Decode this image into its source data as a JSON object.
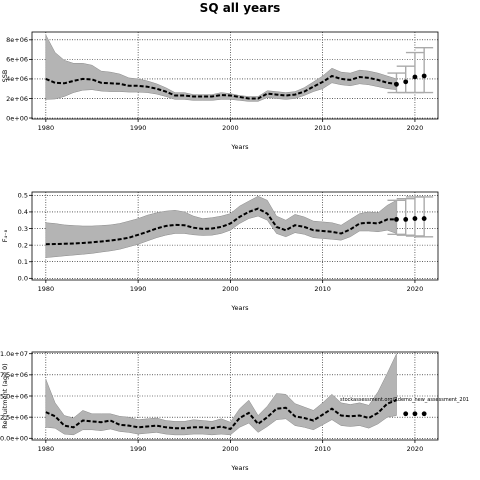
{
  "title": "SQ all years",
  "chart_data": [
    {
      "type": "line",
      "xlabel": "Years",
      "ylabel": "SSB",
      "xlim": [
        1978.5,
        2022.5
      ],
      "ylim": [
        -100000,
        8800000
      ],
      "xticks": [
        1980,
        1990,
        2000,
        2010,
        2020
      ],
      "yticks": [
        0,
        2000000,
        4000000,
        6000000,
        8000000
      ],
      "ytick_labels": [
        "0e+00",
        "2e+06",
        "4e+06",
        "6e+06",
        "8e+06"
      ],
      "grid": true,
      "annotation": "",
      "series": [
        {
          "x": [
            1980,
            1981,
            1982,
            1983,
            1984,
            1985,
            1986,
            1987,
            1988,
            1989,
            1990,
            1991,
            1992,
            1993,
            1994,
            1995,
            1996,
            1997,
            1998,
            1999,
            2000,
            2001,
            2002,
            2003,
            2004,
            2005,
            2006,
            2007,
            2008,
            2009,
            2010,
            2011,
            2012,
            2013,
            2014,
            2015,
            2016,
            2017,
            2018
          ],
          "values": [
            4000000,
            3600000,
            3550000,
            3800000,
            4000000,
            3950000,
            3600000,
            3550000,
            3500000,
            3300000,
            3300000,
            3200000,
            3000000,
            2700000,
            2300000,
            2300000,
            2200000,
            2200000,
            2200000,
            2350000,
            2300000,
            2150000,
            2000000,
            2000000,
            2500000,
            2400000,
            2300000,
            2400000,
            2700000,
            3200000,
            3700000,
            4300000,
            4000000,
            3900000,
            4200000,
            4100000,
            3900000,
            3600000,
            3500000
          ],
          "upper": [
            8500000,
            6700000,
            5900000,
            5600000,
            5600000,
            5400000,
            4800000,
            4700000,
            4500000,
            4100000,
            4000000,
            3800000,
            3500000,
            3100000,
            2600000,
            2600000,
            2400000,
            2400000,
            2400000,
            2600000,
            2500000,
            2300000,
            2200000,
            2200000,
            2800000,
            2700000,
            2600000,
            2700000,
            3100000,
            3700000,
            4300000,
            5100000,
            4700000,
            4600000,
            4900000,
            4800000,
            4600000,
            4300000,
            4000000
          ],
          "lower": [
            1900000,
            1950000,
            2200000,
            2600000,
            2850000,
            2900000,
            2750000,
            2700000,
            2700000,
            2650000,
            2650000,
            2600000,
            2450000,
            2200000,
            1900000,
            1900000,
            1800000,
            1800000,
            1800000,
            1900000,
            1900000,
            1800000,
            1700000,
            1700000,
            2100000,
            2000000,
            1900000,
            2000000,
            2300000,
            2700000,
            3000000,
            3600000,
            3400000,
            3300000,
            3500000,
            3400000,
            3200000,
            3000000,
            2900000
          ]
        }
      ],
      "forecast": [
        {
          "x": 2018,
          "value": 3450000,
          "lower": 2600000,
          "upper": 4600000
        },
        {
          "x": 2019,
          "value": 3700000,
          "lower": 2600000,
          "upper": 5300000
        },
        {
          "x": 2020,
          "value": 4200000,
          "lower": 2600000,
          "upper": 6700000
        },
        {
          "x": 2021,
          "value": 4300000,
          "lower": 2600000,
          "upper": 7200000
        }
      ]
    },
    {
      "type": "line",
      "xlabel": "Years",
      "ylabel": "F₄₋₈",
      "xlim": [
        1978.5,
        2022.5
      ],
      "ylim": [
        -0.01,
        0.52
      ],
      "xticks": [
        1980,
        1990,
        2000,
        2010,
        2020
      ],
      "yticks": [
        0.0,
        0.1,
        0.2,
        0.3,
        0.4,
        0.5
      ],
      "ytick_labels": [
        "0.0",
        "0.1",
        "0.2",
        "0.3",
        "0.4",
        "0.5"
      ],
      "grid": true,
      "annotation": "",
      "series": [
        {
          "x": [
            1980,
            1981,
            1982,
            1983,
            1984,
            1985,
            1986,
            1987,
            1988,
            1989,
            1990,
            1991,
            1992,
            1993,
            1994,
            1995,
            1996,
            1997,
            1998,
            1999,
            2000,
            2001,
            2002,
            2003,
            2004,
            2005,
            2006,
            2007,
            2008,
            2009,
            2010,
            2011,
            2012,
            2013,
            2014,
            2015,
            2016,
            2017,
            2018
          ],
          "values": [
            0.205,
            0.207,
            0.208,
            0.21,
            0.213,
            0.217,
            0.222,
            0.228,
            0.235,
            0.245,
            0.262,
            0.28,
            0.3,
            0.315,
            0.322,
            0.32,
            0.305,
            0.298,
            0.3,
            0.31,
            0.33,
            0.37,
            0.4,
            0.42,
            0.39,
            0.31,
            0.29,
            0.32,
            0.31,
            0.29,
            0.285,
            0.28,
            0.27,
            0.295,
            0.33,
            0.335,
            0.33,
            0.355,
            0.355
          ],
          "upper": [
            0.335,
            0.33,
            0.322,
            0.318,
            0.315,
            0.315,
            0.318,
            0.322,
            0.33,
            0.345,
            0.36,
            0.38,
            0.395,
            0.405,
            0.41,
            0.4,
            0.375,
            0.36,
            0.365,
            0.375,
            0.39,
            0.435,
            0.465,
            0.495,
            0.47,
            0.375,
            0.35,
            0.385,
            0.37,
            0.345,
            0.34,
            0.335,
            0.32,
            0.355,
            0.39,
            0.4,
            0.395,
            0.44,
            0.47
          ],
          "lower": [
            0.125,
            0.13,
            0.135,
            0.14,
            0.145,
            0.15,
            0.158,
            0.165,
            0.175,
            0.19,
            0.205,
            0.225,
            0.245,
            0.26,
            0.27,
            0.27,
            0.262,
            0.258,
            0.26,
            0.27,
            0.29,
            0.33,
            0.36,
            0.375,
            0.35,
            0.27,
            0.25,
            0.275,
            0.265,
            0.245,
            0.24,
            0.235,
            0.23,
            0.25,
            0.285,
            0.285,
            0.28,
            0.29,
            0.27
          ]
        }
      ],
      "forecast": [
        {
          "x": 2018,
          "value": 0.355,
          "lower": 0.265,
          "upper": 0.47
        },
        {
          "x": 2019,
          "value": 0.355,
          "lower": 0.26,
          "upper": 0.48
        },
        {
          "x": 2020,
          "value": 0.36,
          "lower": 0.255,
          "upper": 0.49
        },
        {
          "x": 2021,
          "value": 0.36,
          "lower": 0.25,
          "upper": 0.49
        }
      ]
    },
    {
      "type": "line",
      "xlabel": "Years",
      "ylabel": "Recruitment (age 0)",
      "xlim": [
        1978.5,
        2022.5
      ],
      "ylim": [
        -200000,
        10200000
      ],
      "xticks": [
        1980,
        1990,
        2000,
        2010,
        2020
      ],
      "yticks": [
        0,
        2500000,
        5000000,
        7500000,
        10000000
      ],
      "ytick_labels": [
        "0.0e+00",
        "2.5e+06",
        "5.0e+06",
        "7.5e+06",
        "1.0e+07"
      ],
      "grid": true,
      "annotation": "stockassessment.org/Rdemo_new_assessment_201",
      "series": [
        {
          "x": [
            1980,
            1981,
            1982,
            1983,
            1984,
            1985,
            1986,
            1987,
            1988,
            1989,
            1990,
            1991,
            1992,
            1993,
            1994,
            1995,
            1996,
            1997,
            1998,
            1999,
            2000,
            2001,
            2002,
            2003,
            2004,
            2005,
            2006,
            2007,
            2008,
            2009,
            2010,
            2011,
            2012,
            2013,
            2014,
            2015,
            2016,
            2017,
            2018
          ],
          "values": [
            3100000,
            2600000,
            1500000,
            1300000,
            2100000,
            2000000,
            1900000,
            2100000,
            1600000,
            1500000,
            1300000,
            1400000,
            1500000,
            1300000,
            1200000,
            1200000,
            1300000,
            1300000,
            1200000,
            1400000,
            1100000,
            2400000,
            3000000,
            1700000,
            2500000,
            3500000,
            3600000,
            2600000,
            2400000,
            2100000,
            2800000,
            3500000,
            2700000,
            2600000,
            2700000,
            2400000,
            3000000,
            4100000,
            4500000
          ],
          "upper": [
            7000000,
            4200000,
            2700000,
            2400000,
            3300000,
            2900000,
            2900000,
            2900000,
            2600000,
            2500000,
            2200000,
            2300000,
            2400000,
            2100000,
            2000000,
            2000000,
            2200000,
            2100000,
            2000000,
            2300000,
            1900000,
            3500000,
            4500000,
            2700000,
            3800000,
            5300000,
            5200000,
            4100000,
            3700000,
            3300000,
            4200000,
            5200000,
            4200000,
            4000000,
            4200000,
            3900000,
            5500000,
            7700000,
            10000000
          ],
          "lower": [
            1300000,
            1200000,
            500000,
            400000,
            1000000,
            1000000,
            900000,
            1100000,
            800000,
            700000,
            500000,
            600000,
            700000,
            500000,
            400000,
            400000,
            500000,
            500000,
            400000,
            500000,
            400000,
            1300000,
            1800000,
            700000,
            1400000,
            2200000,
            2300000,
            1500000,
            1300000,
            1000000,
            1600000,
            2200000,
            1500000,
            1400000,
            1500000,
            1200000,
            1700000,
            2500000,
            2700000
          ]
        }
      ],
      "forecast": [
        {
          "x": 2019,
          "value": 2900000
        },
        {
          "x": 2020,
          "value": 2900000
        },
        {
          "x": 2021,
          "value": 2900000
        }
      ]
    }
  ]
}
